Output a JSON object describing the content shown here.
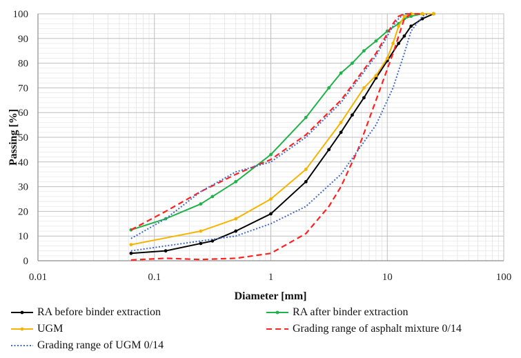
{
  "chart_data": {
    "type": "line",
    "xlabel": "Diameter [mm]",
    "ylabel": "Passing [%]",
    "xscale": "log",
    "xlim": [
      0.01,
      100
    ],
    "ylim": [
      0,
      100
    ],
    "x_ticks": [
      "0.01",
      "0.1",
      "1",
      "10",
      "100"
    ],
    "y_ticks": [
      "0",
      "10",
      "20",
      "30",
      "40",
      "50",
      "60",
      "70",
      "80",
      "90",
      "100"
    ],
    "grid": "major and minor",
    "legend_position": "bottom",
    "series": [
      {
        "name": "RA before binder extraction",
        "color": "#000000",
        "style": "solid-with-markers",
        "x": [
          0.063,
          0.125,
          0.25,
          0.315,
          0.5,
          1,
          2,
          3.15,
          4,
          5,
          6.3,
          8,
          10,
          12.5,
          14,
          16,
          20,
          25
        ],
        "y": [
          3,
          4,
          7,
          8,
          12,
          19,
          32,
          45,
          52,
          59,
          66,
          74,
          81,
          88,
          91,
          95,
          98,
          100
        ]
      },
      {
        "name": "RA after binder extraction",
        "color": "#1fb24a",
        "style": "solid-with-markers",
        "x": [
          0.063,
          0.125,
          0.25,
          0.315,
          0.5,
          1,
          2,
          3.15,
          4,
          5,
          6.3,
          8,
          10,
          12.5,
          14,
          16,
          20,
          25
        ],
        "y": [
          12.5,
          17,
          23,
          26,
          32,
          43,
          58,
          70,
          76,
          80,
          85,
          89,
          93,
          96,
          98,
          99,
          100,
          100
        ]
      },
      {
        "name": "UGM",
        "color": "#f5b400",
        "style": "solid-with-markers",
        "x": [
          0.063,
          0.25,
          0.5,
          1,
          2,
          4,
          6.3,
          8,
          10,
          11.2,
          12.5,
          14,
          16,
          20,
          25
        ],
        "y": [
          6.5,
          12,
          17,
          25,
          37,
          56,
          70,
          75,
          82,
          88,
          95,
          99,
          100,
          100,
          100
        ]
      },
      {
        "name": "Grading range of asphalt mixture 0/14",
        "color": "#ff2020",
        "style": "dashed",
        "lines": [
          {
            "x": [
              0.063,
              0.125,
              0.25,
              0.5,
              1,
              2,
              4,
              8,
              11.2,
              12.5,
              14,
              16
            ],
            "y": [
              12.5,
              20,
              28,
              35,
              41,
              51,
              65,
              84,
              96,
              99,
              100,
              100
            ]
          },
          {
            "x": [
              0.063,
              0.125,
              0.25,
              0.5,
              1,
              2,
              3.15,
              4,
              5.6,
              8,
              11.2,
              14,
              16,
              20
            ],
            "y": [
              0.3,
              1,
              0.5,
              1,
              3,
              11,
              22,
              30,
              45,
              65,
              84,
              98,
              100,
              100
            ]
          }
        ]
      },
      {
        "name": "Grading range of UGM 0/14",
        "color": "#4169c8",
        "style": "dotted",
        "lines": [
          {
            "x": [
              0.063,
              0.125,
              0.25,
              0.5,
              1,
              2,
              4,
              8,
              11.2,
              12.5,
              14,
              16
            ],
            "y": [
              9,
              17,
              28,
              36,
              40,
              50,
              64,
              83,
              95,
              98,
              100,
              100
            ]
          },
          {
            "x": [
              0.063,
              0.125,
              0.25,
              0.5,
              1,
              2,
              4,
              8,
              11.2,
              14,
              16,
              20,
              22.4
            ],
            "y": [
              4,
              6,
              8,
              10,
              15,
              22,
              35,
              55,
              70,
              84,
              93,
              99,
              100
            ]
          }
        ]
      }
    ]
  }
}
